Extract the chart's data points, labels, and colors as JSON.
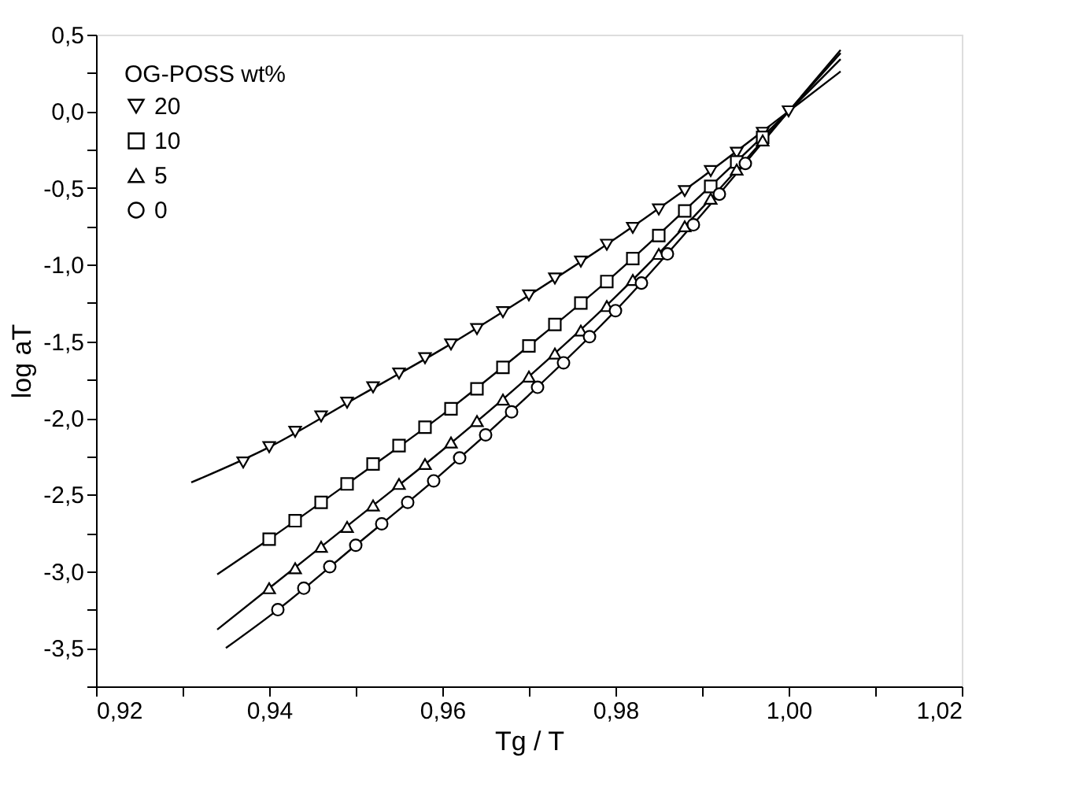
{
  "chart_data": {
    "type": "scatter",
    "xlabel": "Tg / T",
    "ylabel": "log aT",
    "legend_title": "OG-POSS wt%",
    "legend": "top left",
    "grid": false,
    "xlim": [
      0.92,
      1.02
    ],
    "ylim": [
      -3.75,
      0.5
    ],
    "xticks": [
      {
        "value": 0.92,
        "label": "0,92"
      },
      {
        "value": 0.93,
        "label": null
      },
      {
        "value": 0.94,
        "label": "0,94"
      },
      {
        "value": 0.95,
        "label": null
      },
      {
        "value": 0.96,
        "label": "0,96"
      },
      {
        "value": 0.97,
        "label": null
      },
      {
        "value": 0.98,
        "label": "0,98"
      },
      {
        "value": 0.99,
        "label": null
      },
      {
        "value": 1.0,
        "label": "1,00"
      },
      {
        "value": 1.01,
        "label": null
      },
      {
        "value": 1.02,
        "label": "1,02"
      }
    ],
    "yticks": [
      {
        "value": -3.75,
        "label": null
      },
      {
        "value": -3.5,
        "label": "-3,5"
      },
      {
        "value": -3.25,
        "label": null
      },
      {
        "value": -3.0,
        "label": "-3,0"
      },
      {
        "value": -2.75,
        "label": null
      },
      {
        "value": -2.5,
        "label": "-2,5"
      },
      {
        "value": -2.25,
        "label": null
      },
      {
        "value": -2.0,
        "label": "-2,0"
      },
      {
        "value": -1.75,
        "label": null
      },
      {
        "value": -1.5,
        "label": "-1,5"
      },
      {
        "value": -1.25,
        "label": null
      },
      {
        "value": -1.0,
        "label": "-1,0"
      },
      {
        "value": -0.75,
        "label": null
      },
      {
        "value": -0.5,
        "label": "-0,5"
      },
      {
        "value": -0.25,
        "label": null
      },
      {
        "value": 0.0,
        "label": "0,0"
      },
      {
        "value": 0.25,
        "label": null
      },
      {
        "value": 0.5,
        "label": "0,5"
      }
    ],
    "series": [
      {
        "name": "20",
        "marker": "triangle-down",
        "color": "#000000",
        "x": [
          0.937,
          0.94,
          0.943,
          0.946,
          0.949,
          0.952,
          0.955,
          0.958,
          0.961,
          0.964,
          0.967,
          0.97,
          0.973,
          0.976,
          0.979,
          0.982,
          0.985,
          0.988,
          0.991,
          0.994,
          0.997,
          1.0
        ],
        "values": [
          -2.29,
          -2.19,
          -2.09,
          -1.99,
          -1.9,
          -1.8,
          -1.71,
          -1.61,
          -1.52,
          -1.42,
          -1.31,
          -1.2,
          -1.09,
          -0.98,
          -0.87,
          -0.76,
          -0.64,
          -0.52,
          -0.39,
          -0.27,
          -0.14,
          0.0
        ]
      },
      {
        "name": "10",
        "marker": "square",
        "color": "#000000",
        "x": [
          0.94,
          0.943,
          0.946,
          0.949,
          0.952,
          0.955,
          0.958,
          0.961,
          0.964,
          0.967,
          0.97,
          0.973,
          0.976,
          0.979,
          0.982,
          0.985,
          0.988,
          0.991,
          0.994,
          0.997
        ],
        "values": [
          -2.79,
          -2.67,
          -2.55,
          -2.43,
          -2.3,
          -2.18,
          -2.06,
          -1.94,
          -1.81,
          -1.67,
          -1.53,
          -1.39,
          -1.25,
          -1.11,
          -0.96,
          -0.81,
          -0.65,
          -0.49,
          -0.33,
          -0.17
        ]
      },
      {
        "name": "5",
        "marker": "triangle",
        "color": "#000000",
        "x": [
          0.94,
          0.943,
          0.946,
          0.949,
          0.952,
          0.955,
          0.958,
          0.961,
          0.964,
          0.967,
          0.97,
          0.973,
          0.976,
          0.979,
          0.982,
          0.985,
          0.988,
          0.991,
          0.994,
          0.997
        ],
        "values": [
          -3.11,
          -2.98,
          -2.84,
          -2.71,
          -2.57,
          -2.43,
          -2.3,
          -2.16,
          -2.02,
          -1.88,
          -1.73,
          -1.58,
          -1.43,
          -1.27,
          -1.1,
          -0.93,
          -0.75,
          -0.57,
          -0.38,
          -0.19
        ]
      },
      {
        "name": "0",
        "marker": "circle",
        "color": "#000000",
        "x": [
          0.941,
          0.944,
          0.947,
          0.95,
          0.953,
          0.956,
          0.959,
          0.962,
          0.965,
          0.968,
          0.971,
          0.974,
          0.977,
          0.98,
          0.983,
          0.986,
          0.989,
          0.992,
          0.995
        ],
        "values": [
          -3.25,
          -3.11,
          -2.97,
          -2.83,
          -2.69,
          -2.55,
          -2.41,
          -2.26,
          -2.11,
          -1.96,
          -1.8,
          -1.64,
          -1.47,
          -1.3,
          -1.12,
          -0.93,
          -0.74,
          -0.54,
          -0.34
        ]
      },
      {
        "type": "line",
        "color": "#000000",
        "x": [
          0.931,
          0.94,
          0.95,
          0.96,
          0.97,
          0.98,
          0.99,
          1.0,
          1.006
        ],
        "values": [
          -2.42,
          -2.19,
          -1.87,
          -1.55,
          -1.2,
          -0.83,
          -0.43,
          0.0,
          0.26
        ]
      },
      {
        "type": "line",
        "color": "#000000",
        "x": [
          0.934,
          0.94,
          0.95,
          0.96,
          0.97,
          0.98,
          0.99,
          1.0,
          1.006
        ],
        "values": [
          -3.02,
          -2.79,
          -2.39,
          -1.98,
          -1.53,
          -1.06,
          -0.54,
          0.0,
          0.34
        ]
      },
      {
        "type": "line",
        "color": "#000000",
        "x": [
          0.934,
          0.94,
          0.95,
          0.96,
          0.97,
          0.98,
          0.99,
          1.0,
          1.006
        ],
        "values": [
          -3.38,
          -3.11,
          -2.66,
          -2.21,
          -1.73,
          -1.21,
          -0.63,
          0.0,
          0.38
        ]
      },
      {
        "type": "line",
        "color": "#000000",
        "x": [
          0.935,
          0.941,
          0.95,
          0.96,
          0.97,
          0.98,
          0.99,
          1.0,
          1.006
        ],
        "values": [
          -3.5,
          -3.25,
          -2.83,
          -2.36,
          -1.85,
          -1.3,
          -0.67,
          0.0,
          0.4
        ]
      }
    ]
  }
}
